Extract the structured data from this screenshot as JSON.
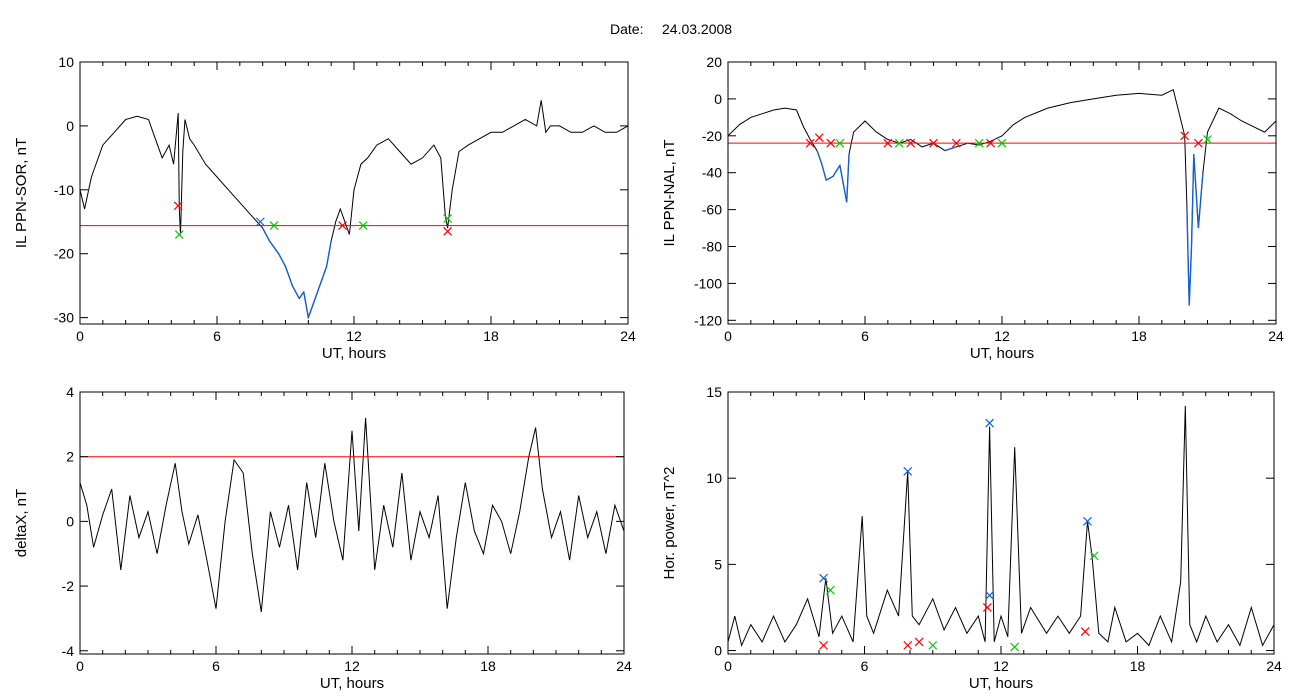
{
  "header": {
    "date_label": "Date:",
    "date_value": "24.03.2008"
  },
  "colors": {
    "trace": "#000000",
    "highlight": "#1560d0",
    "threshold": "#ff0000",
    "marker_red": "#ff0000",
    "marker_green": "#00cc00",
    "marker_blue": "#1560d0",
    "marker_black": "#000000"
  },
  "chart_data": [
    {
      "type": "line",
      "ylabel": "IL PPN-SOR, nT",
      "xlabel": "UT, hours",
      "xlim": [
        0,
        24
      ],
      "ylim": [
        -31,
        10
      ],
      "xticks": [
        0,
        6,
        12,
        18,
        24
      ],
      "xtick_labels": [
        "0",
        "6",
        "12",
        "18",
        "24"
      ],
      "yticks": [
        10,
        0,
        -10,
        -20,
        -30
      ],
      "ytick_labels": [
        "10",
        "0",
        "-10",
        "-20",
        "-30"
      ],
      "threshold": -15.6,
      "highlight_below": -15.6,
      "series": [
        {
          "x": [
            0,
            0.2,
            0.5,
            1,
            1.5,
            2,
            2.5,
            3,
            3.3,
            3.6,
            3.9,
            4.1,
            4.3,
            4.35,
            4.4,
            4.5,
            4.6,
            4.8,
            5,
            5.5,
            6,
            6.5,
            7,
            7.5,
            8,
            8.3,
            8.7,
            9,
            9.3,
            9.6,
            9.8,
            10,
            10.2,
            10.5,
            10.8,
            11,
            11.2,
            11.4,
            11.6,
            11.8,
            12,
            12.3,
            12.6,
            13,
            13.5,
            14,
            14.5,
            15,
            15.5,
            15.8,
            16,
            16.1,
            16.3,
            16.6,
            17,
            17.5,
            18,
            18.5,
            19,
            19.5,
            20,
            20.2,
            20.4,
            20.6,
            21,
            21.5,
            22,
            22.5,
            23,
            23.5,
            24
          ],
          "y": [
            -10,
            -13,
            -8,
            -3,
            -1,
            1,
            1.5,
            1,
            -2,
            -5,
            -3,
            -6,
            2,
            -13,
            -17,
            -4,
            1,
            -2,
            -3,
            -6,
            -8,
            -10,
            -12,
            -14,
            -16,
            -18,
            -20,
            -22,
            -25,
            -27,
            -26,
            -30,
            -28,
            -25,
            -22,
            -18,
            -15,
            -13,
            -15,
            -17,
            -10,
            -6,
            -5,
            -3,
            -2,
            -4,
            -6,
            -5,
            -3,
            -5,
            -14,
            -16,
            -10,
            -4,
            -3,
            -2,
            -1,
            -1,
            0,
            1,
            0,
            4,
            -1,
            0,
            0,
            -1,
            -1,
            0,
            -1,
            -1,
            0
          ]
        }
      ],
      "markers": [
        {
          "x": 4.3,
          "y": -12.5,
          "color": "red"
        },
        {
          "x": 4.35,
          "y": -17,
          "color": "green"
        },
        {
          "x": 7.9,
          "y": -15,
          "color": "blue"
        },
        {
          "x": 8.5,
          "y": -15.6,
          "color": "green"
        },
        {
          "x": 11.5,
          "y": -15.6,
          "color": "red"
        },
        {
          "x": 12.4,
          "y": -15.6,
          "color": "green"
        },
        {
          "x": 16.1,
          "y": -14.5,
          "color": "green"
        },
        {
          "x": 16.1,
          "y": -16.5,
          "color": "red"
        }
      ]
    },
    {
      "type": "line",
      "ylabel": "IL PPN-NAL, nT",
      "xlabel": "UT, hours",
      "xlim": [
        0,
        24
      ],
      "ylim": [
        -122,
        20
      ],
      "xticks": [
        0,
        6,
        12,
        18,
        24
      ],
      "xtick_labels": [
        "0",
        "6",
        "12",
        "18",
        "24"
      ],
      "yticks": [
        20,
        0,
        -20,
        -40,
        -60,
        -80,
        -100,
        -120
      ],
      "ytick_labels": [
        "20",
        "0",
        "-20",
        "-40",
        "-60",
        "-80",
        "-100",
        "-120"
      ],
      "threshold": -24,
      "highlight_below": -24,
      "series": [
        {
          "x": [
            0,
            0.5,
            1,
            1.5,
            2,
            2.5,
            3,
            3.3,
            3.6,
            3.9,
            4.1,
            4.3,
            4.6,
            4.9,
            5.2,
            5.3,
            5.5,
            6,
            6.5,
            7,
            7.5,
            8,
            8.5,
            9,
            9.5,
            10,
            10.5,
            11,
            11.5,
            12,
            12.5,
            13,
            14,
            15,
            16,
            17,
            18,
            19,
            19.5,
            20,
            20.1,
            20.2,
            20.3,
            20.4,
            20.6,
            20.8,
            21,
            21.5,
            22,
            22.5,
            23,
            23.5,
            24
          ],
          "y": [
            -20,
            -14,
            -10,
            -8,
            -6,
            -5,
            -6,
            -15,
            -22,
            -28,
            -35,
            -44,
            -42,
            -36,
            -56,
            -30,
            -18,
            -12,
            -18,
            -22,
            -24,
            -22,
            -26,
            -24,
            -28,
            -26,
            -24,
            -25,
            -23,
            -20,
            -14,
            -10,
            -5,
            -2,
            0,
            2,
            3,
            2,
            5,
            -20,
            -60,
            -112,
            -80,
            -30,
            -70,
            -40,
            -18,
            -5,
            -8,
            -12,
            -15,
            -18,
            -12
          ]
        }
      ],
      "markers": [
        {
          "x": 3.6,
          "y": -24,
          "color": "red"
        },
        {
          "x": 4.0,
          "y": -21,
          "color": "red"
        },
        {
          "x": 4.5,
          "y": -24,
          "color": "red"
        },
        {
          "x": 4.9,
          "y": -24,
          "color": "green"
        },
        {
          "x": 7.0,
          "y": -24,
          "color": "red"
        },
        {
          "x": 7.5,
          "y": -24,
          "color": "green"
        },
        {
          "x": 8.0,
          "y": -24,
          "color": "red"
        },
        {
          "x": 9.0,
          "y": -24,
          "color": "red"
        },
        {
          "x": 10.0,
          "y": -24,
          "color": "red"
        },
        {
          "x": 11.0,
          "y": -24,
          "color": "green"
        },
        {
          "x": 11.5,
          "y": -24,
          "color": "red"
        },
        {
          "x": 12.0,
          "y": -24,
          "color": "green"
        },
        {
          "x": 20.0,
          "y": -20,
          "color": "red"
        },
        {
          "x": 20.6,
          "y": -24,
          "color": "red"
        },
        {
          "x": 21.0,
          "y": -22,
          "color": "green"
        }
      ]
    },
    {
      "type": "line",
      "ylabel": "deltaX, nT",
      "xlabel": "UT, hours",
      "xlim": [
        0,
        24
      ],
      "ylim": [
        -4.1,
        4
      ],
      "xticks": [
        0,
        6,
        12,
        18,
        24
      ],
      "xtick_labels": [
        "0",
        "6",
        "12",
        "18",
        "24"
      ],
      "yticks": [
        4,
        2,
        0,
        -2,
        -4
      ],
      "ytick_labels": [
        "4",
        "2",
        "0",
        "-2",
        "-4"
      ],
      "threshold": 2,
      "series": [
        {
          "x": [
            0,
            0.3,
            0.6,
            1,
            1.4,
            1.8,
            2.2,
            2.6,
            3,
            3.4,
            3.8,
            4.2,
            4.5,
            4.8,
            5.2,
            5.6,
            6,
            6.4,
            6.8,
            7.2,
            7.6,
            8,
            8.4,
            8.8,
            9.2,
            9.6,
            10,
            10.4,
            10.8,
            11.2,
            11.6,
            12,
            12.3,
            12.6,
            13,
            13.4,
            13.8,
            14.2,
            14.6,
            15,
            15.4,
            15.8,
            16.2,
            16.6,
            17,
            17.4,
            17.8,
            18.2,
            18.6,
            19,
            19.4,
            19.8,
            20.1,
            20.4,
            20.8,
            21.2,
            21.6,
            22,
            22.4,
            22.8,
            23.2,
            23.6,
            24
          ],
          "y": [
            1.2,
            0.5,
            -0.8,
            0.2,
            1,
            -1.5,
            0.8,
            -0.5,
            0.3,
            -1,
            0.5,
            1.8,
            0.3,
            -0.7,
            0.2,
            -1.2,
            -2.7,
            0,
            1.9,
            1.5,
            -1,
            -2.8,
            0.3,
            -0.8,
            0.5,
            -1.5,
            1.2,
            -0.5,
            1.8,
            0,
            -1.2,
            2.8,
            -0.3,
            3.2,
            -1.5,
            0.5,
            -0.8,
            1.5,
            -1.2,
            0.3,
            -0.5,
            0.8,
            -2.7,
            -0.5,
            1.2,
            -0.3,
            -1,
            0.5,
            0,
            -1,
            0.3,
            2,
            2.9,
            1,
            -0.5,
            0.3,
            -1.2,
            0.8,
            -0.5,
            0.3,
            -1,
            0.5,
            -0.3
          ]
        }
      ]
    },
    {
      "type": "line",
      "ylabel": "Hor. power, nT^2",
      "xlabel": "UT, hours",
      "xlim": [
        0,
        24
      ],
      "ylim": [
        -0.2,
        15
      ],
      "xticks": [
        0,
        6,
        12,
        18,
        24
      ],
      "xtick_labels": [
        "0",
        "6",
        "12",
        "18",
        "24"
      ],
      "yticks": [
        15,
        10,
        5,
        0
      ],
      "ytick_labels": [
        "15",
        "10",
        "5",
        "0"
      ],
      "series": [
        {
          "x": [
            0,
            0.3,
            0.6,
            1,
            1.5,
            2,
            2.5,
            3,
            3.5,
            4,
            4.3,
            4.6,
            5,
            5.5,
            5.9,
            6.1,
            6.4,
            7,
            7.5,
            7.9,
            8.1,
            8.4,
            9,
            9.5,
            10,
            10.5,
            11,
            11.3,
            11.5,
            11.7,
            12,
            12.3,
            12.6,
            12.9,
            13.3,
            14,
            14.5,
            15,
            15.5,
            15.8,
            16,
            16.3,
            16.7,
            17,
            17.5,
            18,
            18.5,
            19,
            19.5,
            19.9,
            20.1,
            20.3,
            20.6,
            21,
            21.5,
            22,
            22.5,
            23,
            23.5,
            24
          ],
          "y": [
            0.5,
            2,
            0.3,
            1.5,
            0.5,
            2,
            0.5,
            1.5,
            3,
            0.8,
            4.2,
            1,
            2,
            0.5,
            7.8,
            2,
            1,
            3.5,
            2,
            10.4,
            2,
            1.5,
            3,
            1.2,
            2.5,
            1,
            2,
            0.5,
            13,
            0.5,
            2,
            0.8,
            11.8,
            1,
            2.5,
            1,
            2,
            1,
            2,
            7.5,
            5.5,
            1,
            0.5,
            2.5,
            0.5,
            1,
            0.3,
            2,
            0.5,
            4,
            14.2,
            1.5,
            0.5,
            2,
            0.5,
            1.5,
            0.3,
            2.5,
            0.3,
            1.5
          ]
        }
      ],
      "markers": [
        {
          "x": 4.2,
          "y": 4.2,
          "color": "blue"
        },
        {
          "x": 4.2,
          "y": 0.3,
          "color": "red"
        },
        {
          "x": 4.5,
          "y": 3.5,
          "color": "green"
        },
        {
          "x": 7.9,
          "y": 10.4,
          "color": "blue"
        },
        {
          "x": 7.9,
          "y": 0.3,
          "color": "red"
        },
        {
          "x": 8.4,
          "y": 0.5,
          "color": "red"
        },
        {
          "x": 9.0,
          "y": 0.3,
          "color": "green"
        },
        {
          "x": 11.5,
          "y": 13.2,
          "color": "blue"
        },
        {
          "x": 11.5,
          "y": 3.2,
          "color": "blue"
        },
        {
          "x": 11.4,
          "y": 2.5,
          "color": "red"
        },
        {
          "x": 12.6,
          "y": 0.2,
          "color": "green"
        },
        {
          "x": 15.8,
          "y": 7.5,
          "color": "blue"
        },
        {
          "x": 15.7,
          "y": 1.1,
          "color": "red"
        },
        {
          "x": 16.1,
          "y": 5.5,
          "color": "green"
        }
      ]
    }
  ]
}
